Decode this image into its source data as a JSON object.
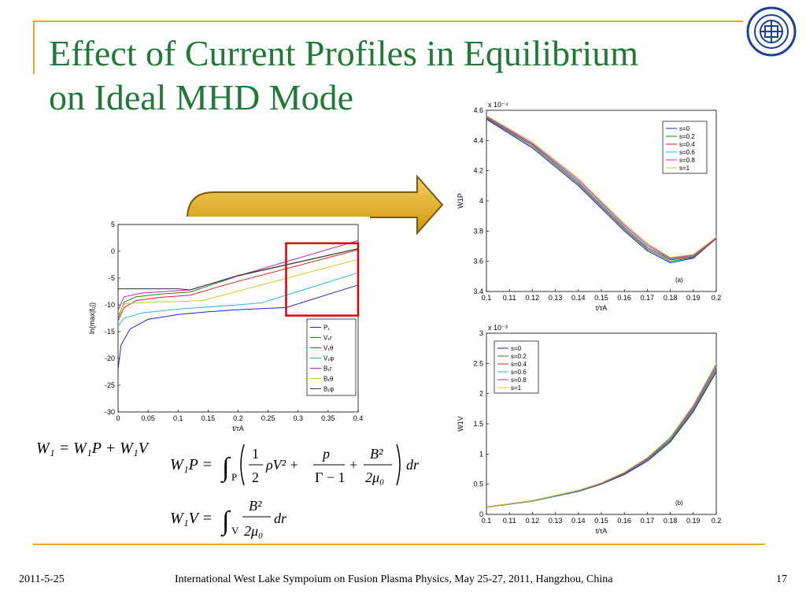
{
  "slide": {
    "title_line1": "Effect of Current Profiles in Equilibrium",
    "title_line2": "on Ideal MHD Mode",
    "footer_date": "2011-5-25",
    "footer_conf": "International West Lake Sympoium on Fusion Plasma Physics, May 25-27, 2011, Hangzhou, China",
    "page_number": "17",
    "accent_color": "#e6a92b",
    "title_color": "#1f7a38"
  },
  "equations": {
    "w1": "W₁ = W₁P + W₁V",
    "w1p_lhs": "W₁P =",
    "w1p_sub": "P",
    "w1p_frac1_num": "1",
    "w1p_frac1_den": "2",
    "w1p_rho": "ρV² +",
    "w1p_frac2_num": "p",
    "w1p_frac2_den": "Γ − 1",
    "w1p_plus": "+",
    "w1p_frac3_num": "B²",
    "w1p_frac3_den": "2μ₀",
    "w1p_dr": "dr",
    "w1v_lhs": "W₁V =",
    "w1v_sub": "V",
    "w1v_frac_num": "B²",
    "w1v_frac_den": "2μ₀",
    "w1v_dr": "dr"
  },
  "chart_data": [
    {
      "type": "line",
      "id": "growth",
      "xlabel": "t/τA",
      "ylabel": "ln(max|f₁|)",
      "xlim": [
        0,
        0.4
      ],
      "ylim": [
        -30,
        5
      ],
      "xticks": [
        "0",
        "0.05",
        "0.1",
        "0.15",
        "0.2",
        "0.25",
        "0.3",
        "0.35",
        "0.4"
      ],
      "yticks": [
        "5",
        "0",
        "-5",
        "-10",
        "-15",
        "-20",
        "-25",
        "-30"
      ],
      "legend_position": "bottom-right",
      "series": [
        {
          "name": "P₁",
          "color": "#2222cc",
          "x": [
            0,
            0.005,
            0.02,
            0.05,
            0.1,
            0.15,
            0.2,
            0.28,
            0.4
          ],
          "y": [
            -22,
            -17.5,
            -14.5,
            -12.7,
            -11.8,
            -11.3,
            -10.9,
            -10.5,
            -6.3
          ]
        },
        {
          "name": "V₁r",
          "color": "#1a8a1a",
          "x": [
            0,
            0.01,
            0.03,
            0.07,
            0.12,
            0.2,
            0.4
          ],
          "y": [
            -12.5,
            -9.5,
            -8.5,
            -8,
            -7.6,
            -4.6,
            0.5
          ]
        },
        {
          "name": "V₁θ",
          "color": "#dd2222",
          "x": [
            0,
            0.01,
            0.03,
            0.07,
            0.12,
            0.18,
            0.4
          ],
          "y": [
            -13,
            -10.5,
            -9.2,
            -8.6,
            -8.2,
            -6.2,
            0.3
          ]
        },
        {
          "name": "V₁φ",
          "color": "#22bbcc",
          "x": [
            0,
            0.01,
            0.04,
            0.1,
            0.2,
            0.24,
            0.4
          ],
          "y": [
            -14,
            -12.5,
            -11.5,
            -10.8,
            -10,
            -9.6,
            -4
          ]
        },
        {
          "name": "B₁r",
          "color": "#cc22cc",
          "x": [
            0,
            0.01,
            0.04,
            0.08,
            0.12,
            0.4
          ],
          "y": [
            -11,
            -8.5,
            -7.8,
            -7.5,
            -7.2,
            2
          ]
        },
        {
          "name": "B₁θ",
          "color": "#cccc22",
          "x": [
            0,
            0.01,
            0.05,
            0.1,
            0.14,
            0.4
          ],
          "y": [
            -12,
            -9.8,
            -9.5,
            -9.4,
            -9.2,
            -1.5
          ]
        },
        {
          "name": "B₁φ",
          "color": "#333333",
          "x": [
            0,
            0.1,
            0.12,
            0.2,
            0.4
          ],
          "y": [
            -7,
            -7,
            -7.2,
            -4.5,
            0.5
          ]
        }
      ],
      "highlight_box": {
        "x": [
          0.28,
          0.4
        ],
        "y": [
          -12,
          1.5
        ],
        "color": "#dd0000"
      }
    },
    {
      "type": "line",
      "id": "w1p",
      "multiplier": "x 10⁻⁴",
      "xlabel": "t/τA",
      "ylabel": "W1P",
      "panel_label": "(a)",
      "xlim": [
        0.1,
        0.2
      ],
      "ylim": [
        3.4,
        4.6
      ],
      "xticks": [
        "0.1",
        "0.11",
        "0.12",
        "0.13",
        "0.14",
        "0.15",
        "0.16",
        "0.17",
        "0.18",
        "0.19",
        "0.2"
      ],
      "yticks": [
        "4.6",
        "4.4",
        "4.2",
        "4",
        "3.8",
        "3.6",
        "3.4"
      ],
      "legend_position": "top-right",
      "series": [
        {
          "name": "s=0",
          "color": "#2222cc",
          "x": [
            0.1,
            0.12,
            0.14,
            0.16,
            0.17,
            0.18,
            0.19,
            0.2
          ],
          "y": [
            4.54,
            4.35,
            4.1,
            3.8,
            3.67,
            3.59,
            3.62,
            3.75
          ]
        },
        {
          "name": "s=0.2",
          "color": "#1a8a1a",
          "x": [
            0.1,
            0.12,
            0.14,
            0.16,
            0.17,
            0.18,
            0.19,
            0.2
          ],
          "y": [
            4.545,
            4.36,
            4.11,
            3.81,
            3.68,
            3.6,
            3.625,
            3.75
          ]
        },
        {
          "name": "s=0.4",
          "color": "#dd2222",
          "x": [
            0.1,
            0.12,
            0.14,
            0.16,
            0.17,
            0.18,
            0.19,
            0.2
          ],
          "y": [
            4.55,
            4.37,
            4.12,
            3.82,
            3.69,
            3.61,
            3.63,
            3.75
          ]
        },
        {
          "name": "s=0.6",
          "color": "#22bbcc",
          "x": [
            0.1,
            0.12,
            0.14,
            0.16,
            0.17,
            0.18,
            0.19,
            0.2
          ],
          "y": [
            4.555,
            4.375,
            4.13,
            3.83,
            3.7,
            3.615,
            3.635,
            3.755
          ]
        },
        {
          "name": "s=0.8",
          "color": "#cc22cc",
          "x": [
            0.1,
            0.12,
            0.14,
            0.16,
            0.17,
            0.18,
            0.19,
            0.2
          ],
          "y": [
            4.56,
            4.38,
            4.14,
            3.84,
            3.71,
            3.62,
            3.64,
            3.755
          ]
        },
        {
          "name": "s=1",
          "color": "#cccc22",
          "x": [
            0.1,
            0.12,
            0.14,
            0.16,
            0.17,
            0.18,
            0.19,
            0.2
          ],
          "y": [
            4.565,
            4.39,
            4.15,
            3.85,
            3.72,
            3.625,
            3.645,
            3.76
          ]
        }
      ]
    },
    {
      "type": "line",
      "id": "w1v",
      "multiplier": "x 10⁻³",
      "xlabel": "t/τA",
      "ylabel": "W1V",
      "panel_label": "(b)",
      "xlim": [
        0.1,
        0.2
      ],
      "ylim": [
        0,
        3
      ],
      "xticks": [
        "0.1",
        "0.11",
        "0.12",
        "0.13",
        "0.14",
        "0.15",
        "0.16",
        "0.17",
        "0.18",
        "0.19",
        "0.2"
      ],
      "yticks": [
        "3",
        "2.5",
        "2",
        "1.5",
        "1",
        "0.5",
        "0"
      ],
      "legend_position": "top-left",
      "series": [
        {
          "name": "s=0",
          "color": "#2222cc",
          "x": [
            0.1,
            0.12,
            0.14,
            0.15,
            0.16,
            0.17,
            0.18,
            0.19,
            0.2
          ],
          "y": [
            0.12,
            0.22,
            0.38,
            0.5,
            0.66,
            0.88,
            1.2,
            1.7,
            2.36
          ]
        },
        {
          "name": "s=0.2",
          "color": "#1a8a1a",
          "x": [
            0.1,
            0.12,
            0.14,
            0.15,
            0.16,
            0.17,
            0.18,
            0.19,
            0.2
          ],
          "y": [
            0.12,
            0.22,
            0.385,
            0.505,
            0.67,
            0.9,
            1.22,
            1.72,
            2.39
          ]
        },
        {
          "name": "s=0.4",
          "color": "#dd2222",
          "x": [
            0.1,
            0.12,
            0.14,
            0.15,
            0.16,
            0.17,
            0.18,
            0.19,
            0.2
          ],
          "y": [
            0.12,
            0.225,
            0.39,
            0.51,
            0.68,
            0.91,
            1.24,
            1.75,
            2.43
          ]
        },
        {
          "name": "s=0.6",
          "color": "#22bbcc",
          "x": [
            0.1,
            0.12,
            0.14,
            0.15,
            0.16,
            0.17,
            0.18,
            0.19,
            0.2
          ],
          "y": [
            0.125,
            0.225,
            0.39,
            0.515,
            0.685,
            0.92,
            1.25,
            1.77,
            2.45
          ]
        },
        {
          "name": "s=0.8",
          "color": "#cc22cc",
          "x": [
            0.1,
            0.12,
            0.14,
            0.15,
            0.16,
            0.17,
            0.18,
            0.19,
            0.2
          ],
          "y": [
            0.125,
            0.23,
            0.395,
            0.52,
            0.69,
            0.93,
            1.27,
            1.79,
            2.48
          ]
        },
        {
          "name": "s=1",
          "color": "#cccc22",
          "x": [
            0.1,
            0.12,
            0.14,
            0.15,
            0.16,
            0.17,
            0.18,
            0.19,
            0.2
          ],
          "y": [
            0.125,
            0.23,
            0.4,
            0.525,
            0.7,
            0.94,
            1.28,
            1.81,
            2.5
          ]
        }
      ]
    }
  ]
}
